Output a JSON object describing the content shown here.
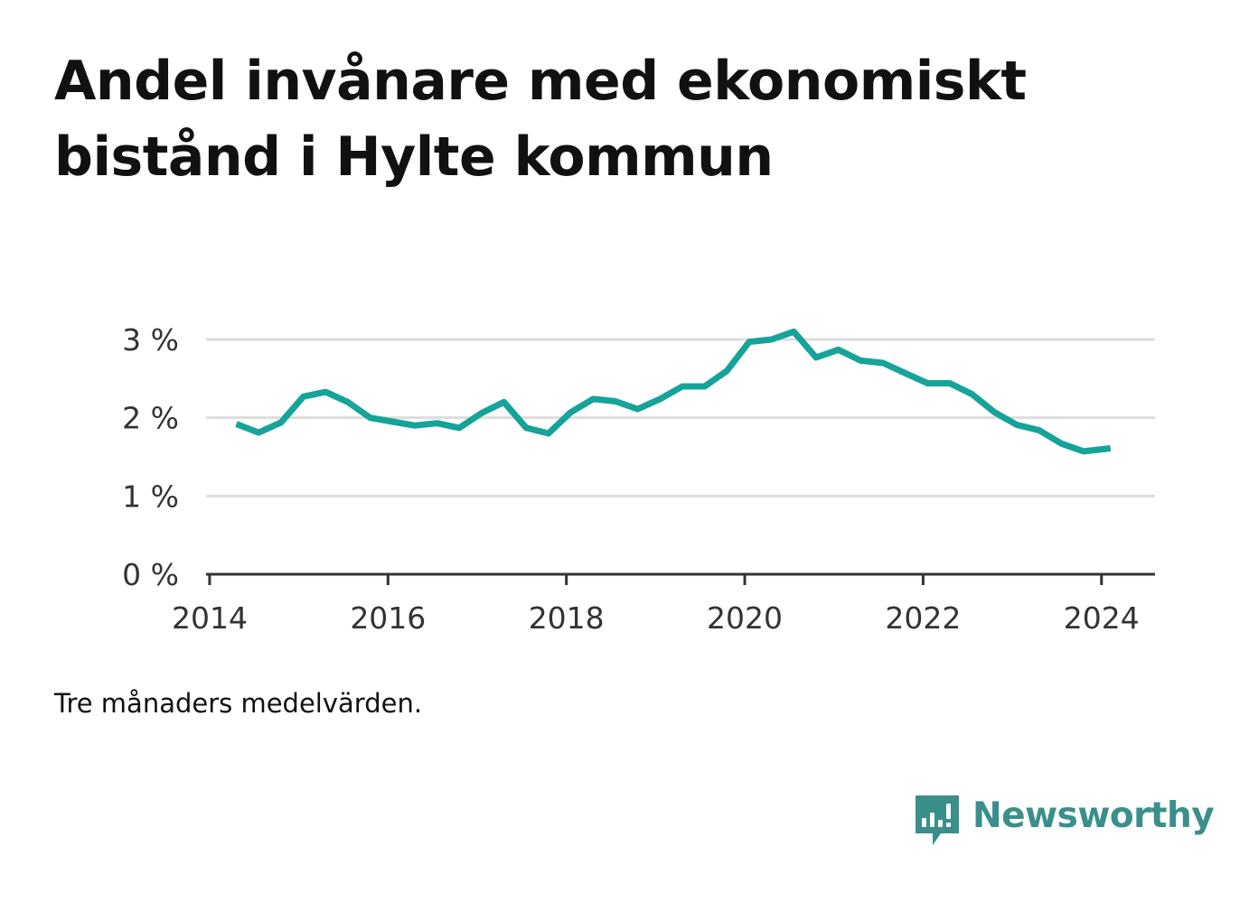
{
  "title": "Andel invånare med ekonomiskt bistånd i Hylte kommun",
  "note": "Tre månaders medelvärden.",
  "brand": {
    "name": "Newsworthy",
    "icon": "newsworthy-logo-icon",
    "color": "#3a8f8a"
  },
  "chart_data": {
    "type": "line",
    "title": "Andel invånare med ekonomiskt bistånd i Hylte kommun",
    "xlabel": "",
    "ylabel": "",
    "xlim": [
      2013.96,
      2024.6
    ],
    "ylim": [
      0,
      3
    ],
    "grid": true,
    "legend": "none",
    "line_color": "#15a39a",
    "x_ticks": [
      {
        "value": 2014,
        "label": "2014"
      },
      {
        "value": 2016,
        "label": "2016"
      },
      {
        "value": 2018,
        "label": "2018"
      },
      {
        "value": 2020,
        "label": "2020"
      },
      {
        "value": 2022,
        "label": "2022"
      },
      {
        "value": 2024,
        "label": "2024"
      }
    ],
    "y_ticks": [
      {
        "value": 0,
        "label": "0 %"
      },
      {
        "value": 1,
        "label": "1 %"
      },
      {
        "value": 2,
        "label": "2 %"
      },
      {
        "value": 3,
        "label": "3 %"
      }
    ],
    "series": [
      {
        "x": [
          2014.3,
          2014.55,
          2014.8,
          2015.05,
          2015.3,
          2015.55,
          2015.8,
          2016.05,
          2016.3,
          2016.55,
          2016.8,
          2017.05,
          2017.3,
          2017.55,
          2017.8,
          2018.05,
          2018.3,
          2018.55,
          2018.8,
          2019.05,
          2019.3,
          2019.55,
          2019.8,
          2020.05,
          2020.3,
          2020.55,
          2020.8,
          2021.05,
          2021.3,
          2021.55,
          2021.8,
          2022.05,
          2022.3,
          2022.55,
          2022.8,
          2023.05,
          2023.3,
          2023.55,
          2023.8,
          2024.1
        ],
        "y": [
          1.92,
          1.81,
          1.94,
          2.27,
          2.33,
          2.2,
          2.0,
          1.95,
          1.9,
          1.93,
          1.87,
          2.06,
          2.2,
          1.87,
          1.8,
          2.07,
          2.24,
          2.21,
          2.11,
          2.24,
          2.4,
          2.4,
          2.6,
          2.97,
          3.0,
          3.1,
          2.77,
          2.87,
          2.73,
          2.7,
          2.57,
          2.44,
          2.44,
          2.3,
          2.07,
          1.91,
          1.84,
          1.67,
          1.57,
          1.61
        ]
      }
    ]
  }
}
